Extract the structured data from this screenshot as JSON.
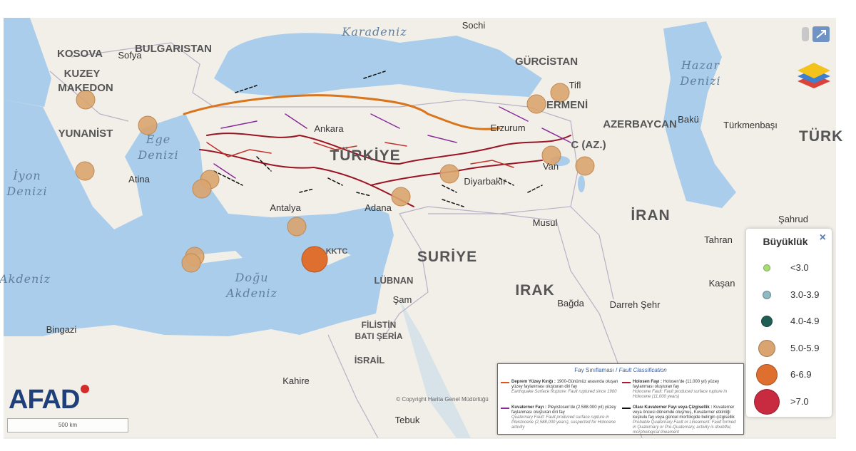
{
  "map": {
    "labels": [
      "Karadeniz",
      "Sochi",
      "KOSOVA",
      "Sofya",
      "BULGARISTAN",
      "KUZEY",
      "MAKEDON",
      "GÜRCİSTAN",
      "Tifl",
      "ERMENİ",
      "Hazar",
      "Denizi",
      "Bakü",
      "AZERBAYCAN",
      "Türkmenbaşı",
      "TÜRK",
      "YUNANİST",
      "Ege",
      "Denizi",
      "Ankara",
      "Erzurum",
      "TÜRKİYE",
      "C (AZ.)",
      "İyon",
      "Denizi",
      "Atina",
      "Diyarbakır",
      "Van",
      "Adana",
      "Antalya",
      "İRAN",
      "Şahrud",
      "KKTC",
      "SURİYE",
      "Musul",
      "Tahran",
      "Akdeniz",
      "Doğu",
      "Akdeniz",
      "LÜBNAN",
      "Şam",
      "IRAK",
      "Bağda",
      "Kaşan",
      "Darreh Şehr",
      "Bingazi",
      "FİLİSTİN",
      "BATI ŞERİA",
      "İSRAİL",
      "Kahire",
      "Tebuk",
      "© Copyright Harita Genel Müdürlüğü"
    ],
    "brand": "AFAD",
    "scale": "500 km"
  },
  "legend": {
    "title": "Büyüklük",
    "close": "×",
    "items": [
      {
        "label": "<3.0",
        "color": "#a6de72"
      },
      {
        "label": "3.0-3.9",
        "color": "#8fb9c2"
      },
      {
        "label": "4.0-4.9",
        "color": "#1f5e52"
      },
      {
        "label": "5.0-5.9",
        "color": "#d9a46f"
      },
      {
        "label": "6-6.9",
        "color": "#de6f2f"
      },
      {
        "label": ">7.0",
        "color": "#c82a40"
      }
    ]
  },
  "fault_classification": {
    "title": "Fay Sınıflaması /",
    "title_en": "Fault Classification",
    "items": [
      {
        "name": "Deprem Yüzey Kırığı :",
        "text": "1900-Günümüz arasında oluşan yüzey faylanması oluşturan diri fay",
        "text_en": "Earthquake Surface Rupture: Fault ruptured since 1900",
        "color": "#e8501a"
      },
      {
        "name": "Holosen Fayı :",
        "text": "Holosen'de (11.000 yıl) yüzey faylanması oluşturan fay",
        "text_en": "Holocene Fault: Fault produced surface rupture in Holocene (11,000 years)",
        "color": "#b0182a"
      },
      {
        "name": "Kuvaterner Fayı :",
        "text": "Pleyistosen'de (2.588.000 yıl) yüzey faylanması oluşturan diri fay",
        "text_en": "Quaternary Fault: Fault produced surface rupture in Pleistocene (2,588,000 years), suspected for Holocene activity",
        "color": "#8a2a9a"
      },
      {
        "name": "Olası Kuvaterner Fayı veya Çizgisellik :",
        "text": "Kuvaterner veya öncesi dönemde oluşmuş, Kuvaterner etkinliği kuşkulu fay veya güncel morfolojide belirgin çizgisellik",
        "text_en": "Probable Quaternary Fault or Lineament: Fault formed in Quaternary or Pre-Quaternary, activity is doubtful, morphological lineament",
        "color": "#111111"
      }
    ]
  }
}
